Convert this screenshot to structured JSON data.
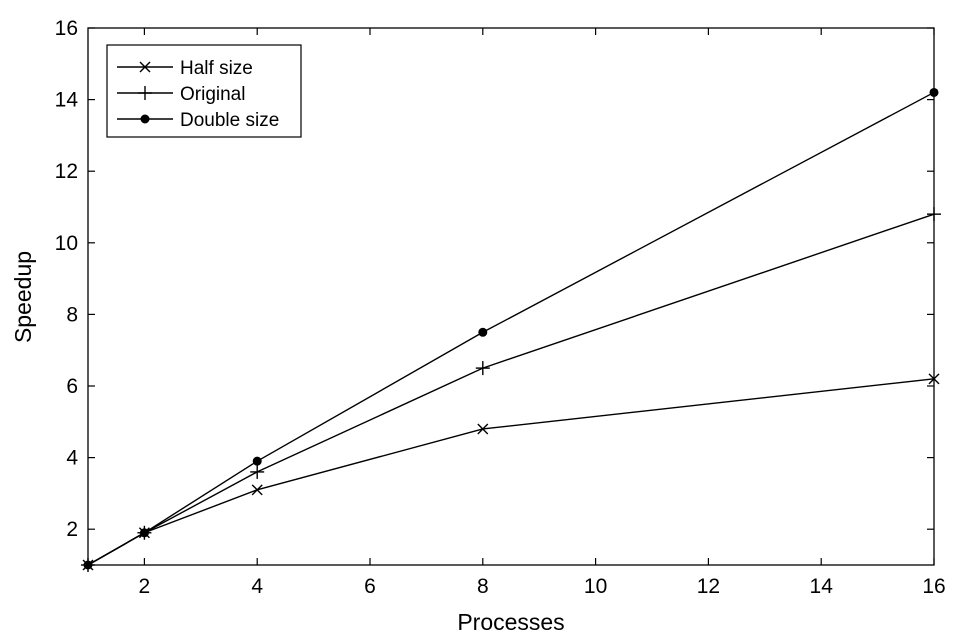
{
  "chart_data": {
    "type": "line",
    "xlabel": "Processes",
    "ylabel": "Speedup",
    "xlim": [
      1,
      16
    ],
    "ylim": [
      1,
      16
    ],
    "xticks": [
      2,
      4,
      6,
      8,
      10,
      12,
      14,
      16
    ],
    "yticks": [
      2,
      4,
      6,
      8,
      10,
      12,
      14,
      16
    ],
    "x": [
      1,
      2,
      4,
      8,
      16
    ],
    "grid": false,
    "legend_position": "top-left",
    "series": [
      {
        "name": "Half size",
        "marker": "x",
        "color": "#000000",
        "values": [
          1,
          1.9,
          3.1,
          4.8,
          6.2
        ]
      },
      {
        "name": "Original",
        "marker": "+",
        "color": "#000000",
        "values": [
          1,
          1.9,
          3.6,
          6.5,
          10.8
        ]
      },
      {
        "name": "Double size",
        "marker": "dot",
        "color": "#000000",
        "values": [
          1,
          1.9,
          3.9,
          7.5,
          14.2
        ]
      }
    ]
  }
}
